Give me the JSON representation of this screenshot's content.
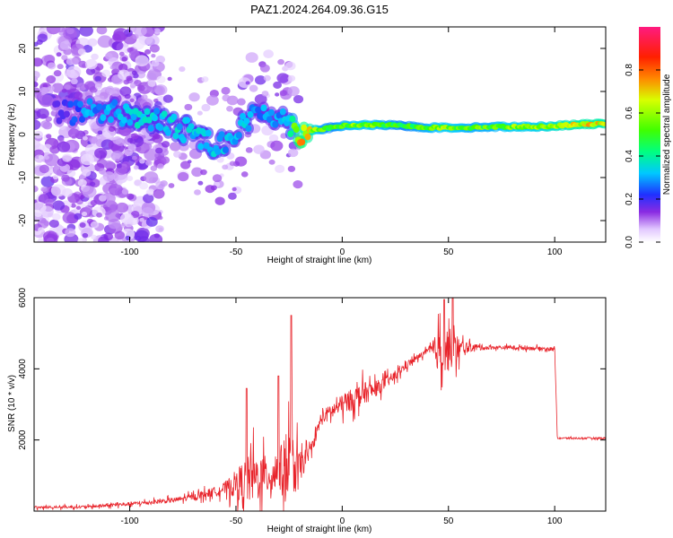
{
  "title": "PAZ1.2024.264.09.36.G15",
  "chart_data": [
    {
      "type": "heatmap",
      "xlabel": "Height of straight line (km)",
      "ylabel": "Frequency (Hz)",
      "xlim": [
        -145,
        124
      ],
      "ylim": [
        -25,
        25
      ],
      "xticks": [
        -100,
        -50,
        0,
        50,
        100
      ],
      "yticks": [
        -20,
        -10,
        0,
        10,
        20
      ],
      "colorbar": {
        "label": "Normalized spectral amplitude",
        "range": [
          0,
          1
        ],
        "ticks": [
          "0.0",
          "0.2",
          "0.4",
          "0.6",
          "0.8"
        ]
      },
      "ridge": {
        "x": [
          -130,
          -120,
          -110,
          -100,
          -90,
          -80,
          -70,
          -60,
          -50,
          -45,
          -40,
          -35,
          -30,
          -25,
          -20,
          -15,
          -10,
          -5,
          0,
          10,
          20,
          30,
          40,
          50,
          60,
          70,
          80,
          90,
          100,
          110,
          124
        ],
        "freq": [
          5,
          5.5,
          5.5,
          4.5,
          3.5,
          2,
          0.5,
          -2.5,
          0,
          3,
          5,
          5.5,
          4,
          3,
          0,
          1,
          1.2,
          1.6,
          2,
          2.2,
          2.2,
          2,
          1.6,
          1.6,
          1.6,
          1.8,
          1.8,
          1.8,
          2,
          2.3,
          2.5
        ],
        "amplitude": [
          0.2,
          0.3,
          0.3,
          0.35,
          0.35,
          0.35,
          0.35,
          0.35,
          0.3,
          0.35,
          0.3,
          0.3,
          0.3,
          0.35,
          0.8,
          0.7,
          0.55,
          0.5,
          0.55,
          0.6,
          0.55,
          0.5,
          0.55,
          0.6,
          0.55,
          0.55,
          0.6,
          0.6,
          0.65,
          0.7,
          0.7
        ]
      }
    },
    {
      "type": "line",
      "xlabel": "Height of straight line (km)",
      "ylabel": "SNR (10 * v/v)",
      "xlim": [
        -145,
        124
      ],
      "ylim": [
        0,
        6000
      ],
      "xticks": [
        -100,
        -50,
        0,
        50,
        100
      ],
      "yticks": [
        2000,
        4000,
        6000
      ],
      "series": [
        {
          "color": "#e8232a",
          "envelope": {
            "x": [
              -145,
              -120,
              -100,
              -80,
              -70,
              -60,
              -55,
              -50,
              -45,
              -40,
              -35,
              -30,
              -25,
              -20,
              -15,
              -12,
              -10,
              -5,
              0,
              5,
              10,
              15,
              20,
              25,
              30,
              35,
              40,
              45,
              50,
              55,
              60,
              70,
              80,
              90,
              100,
              101,
              110,
              124
            ],
            "base": [
              100,
              120,
              200,
              300,
              400,
              550,
              650,
              750,
              850,
              950,
              1000,
              1100,
              1200,
              1200,
              1700,
              2200,
              2600,
              2800,
              3000,
              3150,
              3300,
              3400,
              3600,
              3800,
              4100,
              4300,
              4500,
              4500,
              4550,
              4550,
              4600,
              4600,
              4600,
              4580,
              4550,
              2050,
              2050,
              2050
            ],
            "spread": [
              80,
              80,
              120,
              150,
              200,
              300,
              400,
              900,
              1500,
              1500,
              1200,
              1300,
              2500,
              1000,
              300,
              400,
              450,
              500,
              600,
              700,
              700,
              500,
              400,
              300,
              250,
              200,
              150,
              1200,
              1400,
              700,
              250,
              120,
              120,
              120,
              120,
              60,
              60,
              60
            ]
          },
          "spikes": [
            [
              -45,
              3450
            ],
            [
              -24,
              5500
            ],
            [
              -30,
              3800
            ],
            [
              48,
              5950
            ],
            [
              52,
              6000
            ]
          ]
        }
      ]
    }
  ]
}
